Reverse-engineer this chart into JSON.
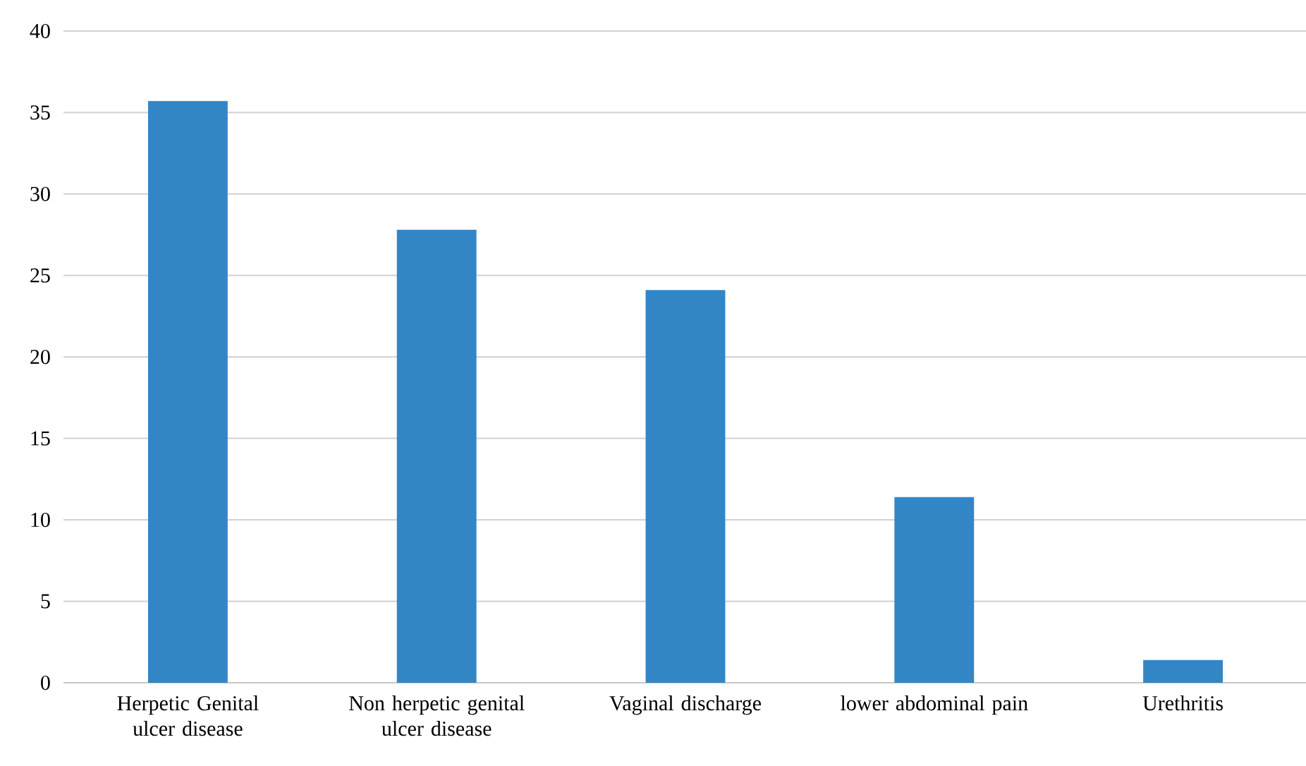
{
  "chart_data": {
    "type": "bar",
    "categories": [
      "Herpetic Genital ulcer disease",
      "Non herpetic genital ulcer disease",
      "Vaginal discharge",
      "lower abdominal pain",
      "Urethritis"
    ],
    "values": [
      35.7,
      27.8,
      24.1,
      11.4,
      1.4
    ],
    "color": "#3286c6",
    "ylim": [
      0,
      40
    ],
    "yticks": [
      0,
      5,
      10,
      15,
      20,
      25,
      30,
      35,
      40
    ],
    "grid": "y"
  }
}
